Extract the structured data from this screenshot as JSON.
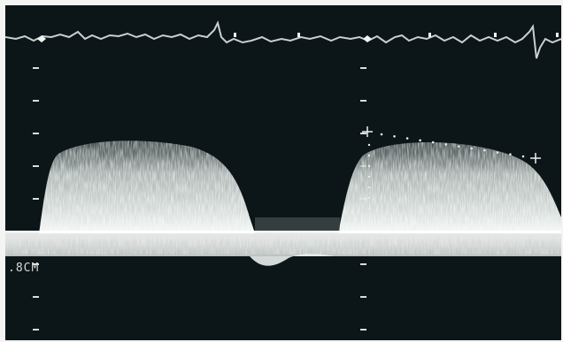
{
  "scale_label": ".8CM",
  "colors": {
    "background": "#0c1517",
    "frame": "#f4f4f2",
    "spectrum": "#e8eeec",
    "ecg_trace": "#c9d0cd",
    "tick_marks": "#d9dedb",
    "baseline": "#f6f6f2"
  },
  "icons": {
    "ecg_marker": "diamond",
    "caliper": "plus"
  }
}
